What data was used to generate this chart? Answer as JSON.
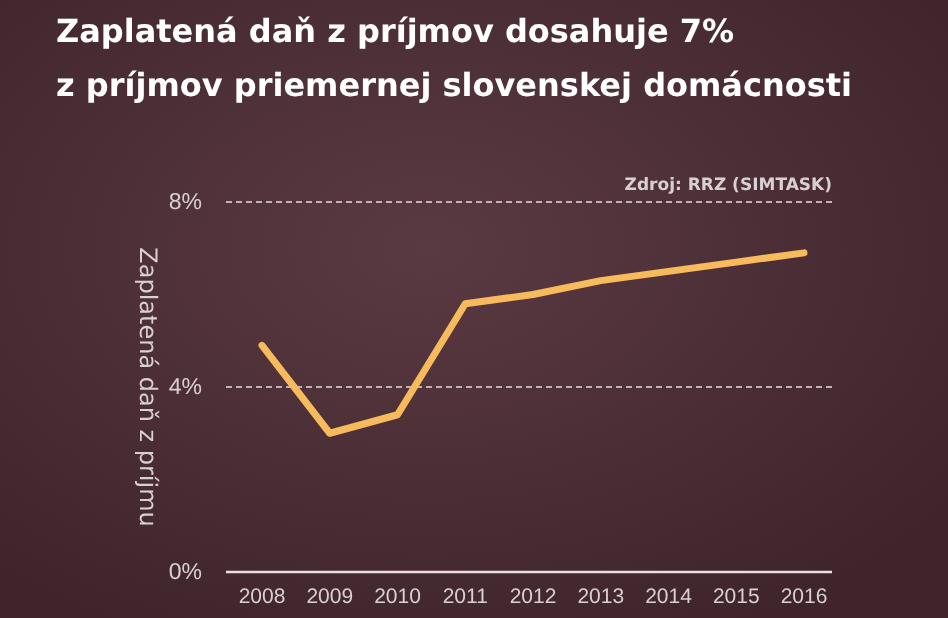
{
  "chart_data": {
    "type": "line",
    "title": "Zaplatená daň z príjmov dosahuje 7%\nz príjmov priemernej slovenskej domácnosti",
    "ylabel": "Zaplatená daň z príjmu",
    "annotations": [
      "Zdroj: RRZ (SIMTASK)"
    ],
    "categories": [
      "2008",
      "2009",
      "2010",
      "2011",
      "2012",
      "2013",
      "2014",
      "2015",
      "2016"
    ],
    "series": [
      {
        "color": "#f7bb5e",
        "values": [
          4.9,
          3.0,
          3.4,
          5.8,
          6.0,
          6.3,
          6.5,
          6.7,
          6.9
        ]
      }
    ],
    "ylim": [
      0,
      8
    ],
    "yticks": [
      {
        "value": 0,
        "label": "0%"
      },
      {
        "value": 4,
        "label": "4%"
      },
      {
        "value": 8,
        "label": "8%"
      }
    ],
    "grid": "y",
    "marker": "none",
    "line_style": "solid"
  }
}
